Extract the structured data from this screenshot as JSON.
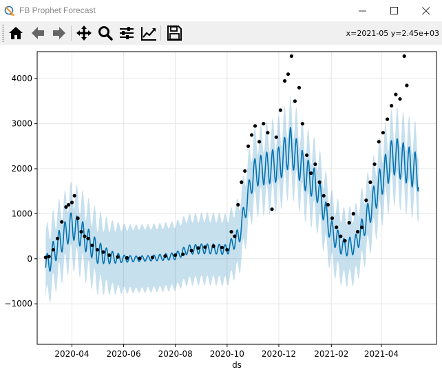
{
  "window": {
    "title": "FB Prophet Forecast",
    "controls": [
      "minimize",
      "maximize",
      "close"
    ]
  },
  "toolbar": {
    "buttons": [
      {
        "name": "home",
        "icon": "home-icon"
      },
      {
        "name": "back",
        "icon": "arrow-left-icon"
      },
      {
        "name": "forward",
        "icon": "arrow-right-icon"
      },
      {
        "name": "pan",
        "icon": "move-icon"
      },
      {
        "name": "zoom",
        "icon": "magnifier-icon"
      },
      {
        "name": "subplots",
        "icon": "sliders-icon"
      },
      {
        "name": "edit-axes",
        "icon": "line-chart-icon"
      },
      {
        "name": "save",
        "icon": "floppy-disk-icon"
      }
    ],
    "coordinates": "x=2021-05 y=2.45e+03"
  },
  "chart_data": {
    "type": "line",
    "title": "",
    "xlabel": "ds",
    "ylabel": "",
    "x_type": "date",
    "x_ticks": [
      "2020-04",
      "2020-06",
      "2020-08",
      "2020-10",
      "2020-12",
      "2021-02",
      "2021-04"
    ],
    "y_ticks": [
      -1000,
      0,
      1000,
      2000,
      3000,
      4000
    ],
    "xlim": [
      "2020-02-20",
      "2021-06-05"
    ],
    "ylim": [
      -1900,
      4600
    ],
    "grid": true,
    "legend": "none",
    "colors": {
      "forecast_line": "#0072B2",
      "uncertainty_band": "#0072B2",
      "observed_points": "#000000",
      "grid": "#e5e5e5"
    },
    "series": [
      {
        "kind": "forecast",
        "weekly_cycle_days": 7,
        "x": [
          "2020-03-01",
          "2020-03-15",
          "2020-04-01",
          "2020-04-15",
          "2020-05-01",
          "2020-05-15",
          "2020-06-01",
          "2020-06-15",
          "2020-07-01",
          "2020-07-15",
          "2020-08-01",
          "2020-08-15",
          "2020-09-01",
          "2020-09-15",
          "2020-10-01",
          "2020-10-15",
          "2020-11-01",
          "2020-11-15",
          "2020-12-01",
          "2020-12-15",
          "2021-01-01",
          "2021-01-15",
          "2021-02-01",
          "2021-02-15",
          "2021-03-01",
          "2021-03-15",
          "2021-04-01",
          "2021-04-15",
          "2021-05-01",
          "2021-05-15"
        ],
        "trend": [
          -200,
          300,
          750,
          500,
          150,
          40,
          0,
          0,
          10,
          30,
          60,
          200,
          220,
          220,
          200,
          500,
          1900,
          2000,
          2100,
          2500,
          1900,
          1600,
          600,
          250,
          300,
          900,
          1750,
          2300,
          2100,
          1900
        ],
        "weekly_amplitude": [
          250,
          280,
          300,
          300,
          250,
          150,
          80,
          60,
          60,
          70,
          80,
          100,
          110,
          110,
          110,
          200,
          300,
          350,
          380,
          420,
          380,
          330,
          260,
          200,
          200,
          280,
          360,
          420,
          420,
          400
        ],
        "band_halfwidth": 700
      },
      {
        "kind": "observed",
        "x": [
          "2020-03-01",
          "2020-03-05",
          "2020-03-10",
          "2020-03-15",
          "2020-03-20",
          "2020-03-25",
          "2020-03-28",
          "2020-04-01",
          "2020-04-04",
          "2020-04-08",
          "2020-04-12",
          "2020-04-16",
          "2020-04-20",
          "2020-04-25",
          "2020-05-01",
          "2020-05-08",
          "2020-05-15",
          "2020-05-25",
          "2020-06-05",
          "2020-06-20",
          "2020-07-05",
          "2020-07-20",
          "2020-08-01",
          "2020-08-10",
          "2020-08-20",
          "2020-08-28",
          "2020-09-05",
          "2020-09-15",
          "2020-09-25",
          "2020-10-01",
          "2020-10-06",
          "2020-10-10",
          "2020-10-14",
          "2020-10-18",
          "2020-10-22",
          "2020-10-26",
          "2020-10-30",
          "2020-11-03",
          "2020-11-08",
          "2020-11-13",
          "2020-11-18",
          "2020-11-23",
          "2020-11-28",
          "2020-12-03",
          "2020-12-08",
          "2020-12-12",
          "2020-12-16",
          "2020-12-20",
          "2020-12-25",
          "2020-12-29",
          "2021-01-03",
          "2021-01-08",
          "2021-01-13",
          "2021-01-18",
          "2021-01-23",
          "2021-01-28",
          "2021-02-02",
          "2021-02-07",
          "2021-02-12",
          "2021-02-17",
          "2021-02-22",
          "2021-02-27",
          "2021-03-04",
          "2021-03-09",
          "2021-03-14",
          "2021-03-19",
          "2021-03-24",
          "2021-03-29",
          "2021-04-03",
          "2021-04-08",
          "2021-04-13",
          "2021-04-18",
          "2021-04-23",
          "2021-04-28",
          "2021-05-01"
        ],
        "y": [
          30,
          50,
          200,
          450,
          820,
          1150,
          1200,
          1250,
          1400,
          900,
          600,
          500,
          450,
          300,
          200,
          150,
          80,
          40,
          20,
          10,
          30,
          60,
          80,
          100,
          180,
          240,
          260,
          280,
          250,
          200,
          600,
          500,
          1200,
          1700,
          1950,
          2500,
          2750,
          2950,
          2600,
          3000,
          2800,
          1100,
          2700,
          3300,
          3950,
          4100,
          4500,
          3500,
          3800,
          3000,
          2300,
          1900,
          2100,
          1700,
          1400,
          1200,
          900,
          700,
          500,
          400,
          800,
          1000,
          600,
          700,
          1300,
          1700,
          2100,
          2600,
          2800,
          3100,
          3400,
          3650,
          3550,
          4500,
          3850
        ]
      }
    ]
  }
}
